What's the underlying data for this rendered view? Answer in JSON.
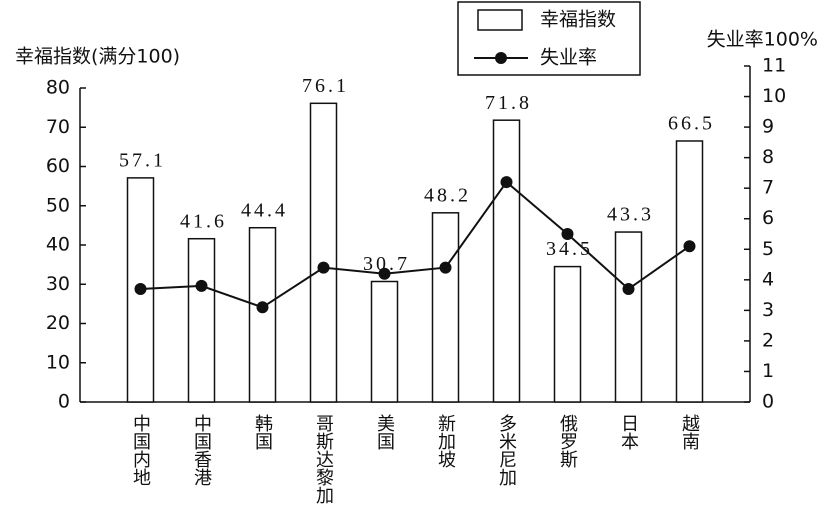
{
  "chart_data": {
    "type": "bar",
    "y_title": "幸福指数(满分100)",
    "y2_title": "失业率100%",
    "categories": [
      "中国内地",
      "中国香港",
      "韩国",
      "哥斯达黎加",
      "美国",
      "新加坡",
      "多米尼加",
      "俄罗斯",
      "日本",
      "越南"
    ],
    "series": [
      {
        "name": "幸福指数",
        "type": "bar",
        "color": "#ffffff",
        "values": [
          57.1,
          41.6,
          44.4,
          76.1,
          30.7,
          48.2,
          71.8,
          34.5,
          43.3,
          66.5
        ]
      },
      {
        "name": "失业率",
        "type": "line",
        "axis": "y2",
        "color": "#111111",
        "values": [
          3.7,
          3.8,
          3.1,
          4.4,
          4.2,
          4.4,
          7.2,
          5.5,
          3.7,
          5.1
        ]
      }
    ],
    "ylim": [
      0,
      80
    ],
    "yticks": [
      0,
      10,
      20,
      30,
      40,
      50,
      60,
      70,
      80
    ],
    "y2lim": [
      0,
      11
    ],
    "y2ticks": [
      0,
      1,
      2,
      3,
      4,
      5,
      6,
      7,
      8,
      9,
      10,
      11
    ],
    "grid": false,
    "legend": "top"
  }
}
